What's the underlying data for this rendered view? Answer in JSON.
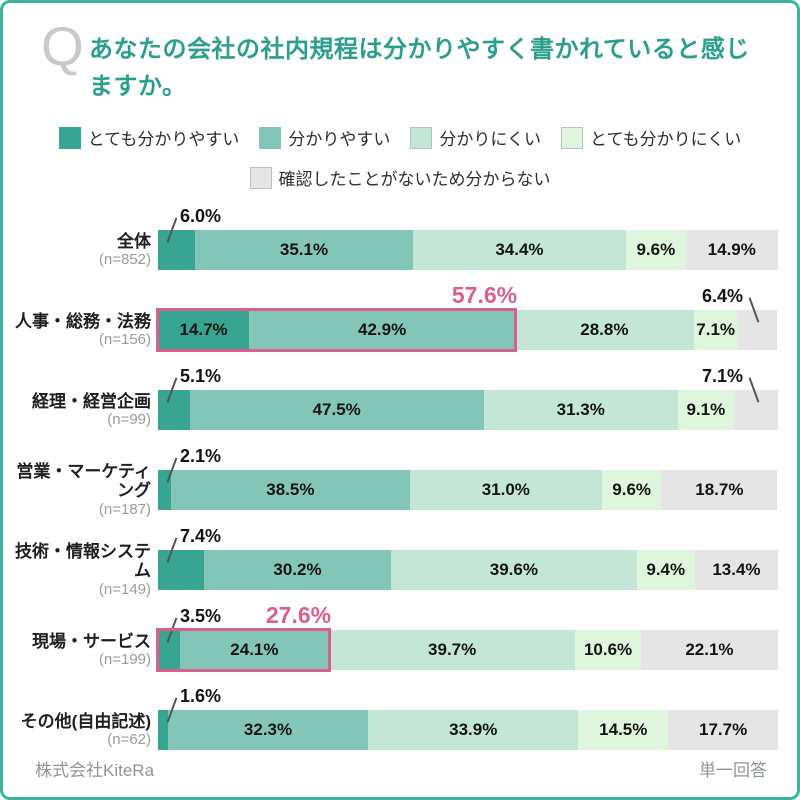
{
  "colors": {
    "border": "#3cb49c",
    "title": "#2aa08c",
    "q_mark": "#c9c9c9",
    "highlight": "#d95f8e",
    "n_gray": "#9b9b9b",
    "footer_gray": "#8c9795",
    "series": [
      "#38a492",
      "#83c6b8",
      "#c4e6d6",
      "#dff5dd",
      "#e5e5e5"
    ]
  },
  "header": {
    "q_mark": "Q",
    "title": "あなたの会社の社内規程は分かりやすく書かれていると感じますか。"
  },
  "legend": {
    "row1": [
      "とても分かりやすい",
      "分かりやすい",
      "分かりにくい",
      "とても分かりにくい"
    ],
    "row2": [
      "確認したことがないため分からない"
    ]
  },
  "chart_data": {
    "type": "bar",
    "subtype": "horizontal-stacked-percentage",
    "unit": "%",
    "xlim": [
      0,
      100
    ],
    "series_names": [
      "とても分かりやすい",
      "分かりやすい",
      "分かりにくい",
      "とても分かりにくい",
      "確認したことがないため分からない"
    ],
    "rows": [
      {
        "category": "全体",
        "n": "(n=852)",
        "values": [
          6.0,
          35.1,
          34.4,
          9.6,
          14.9
        ],
        "callout_first": true,
        "callout_last": false,
        "highlight": null
      },
      {
        "category": "人事・総務・法務",
        "n": "(n=156)",
        "values": [
          14.7,
          42.9,
          28.8,
          7.1,
          6.4
        ],
        "callout_first": false,
        "callout_last": true,
        "highlight": {
          "span": 2,
          "label": "57.6%"
        }
      },
      {
        "category": "経理・経営企画",
        "n": "(n=99)",
        "values": [
          5.1,
          47.5,
          31.3,
          9.1,
          7.1
        ],
        "callout_first": true,
        "callout_last": true,
        "highlight": null
      },
      {
        "category": "営業・マーケティング",
        "n": "(n=187)",
        "values": [
          2.1,
          38.5,
          31.0,
          9.6,
          18.7
        ],
        "callout_first": true,
        "callout_last": false,
        "highlight": null
      },
      {
        "category": "技術・情報システム",
        "n": "(n=149)",
        "values": [
          7.4,
          30.2,
          39.6,
          9.4,
          13.4
        ],
        "callout_first": true,
        "callout_last": false,
        "highlight": null
      },
      {
        "category": "現場・サービス",
        "n": "(n=199)",
        "values": [
          3.5,
          24.1,
          39.7,
          10.6,
          22.1
        ],
        "callout_first": true,
        "callout_last": false,
        "highlight": {
          "span": 2,
          "label": "27.6%"
        }
      },
      {
        "category": "その他(自由記述)",
        "n": "(n=62)",
        "values": [
          1.6,
          32.3,
          33.9,
          14.5,
          17.7
        ],
        "callout_first": true,
        "callout_last": false,
        "highlight": null
      }
    ]
  },
  "footer": {
    "left": "株式会社KiteRa",
    "right": "単一回答"
  }
}
